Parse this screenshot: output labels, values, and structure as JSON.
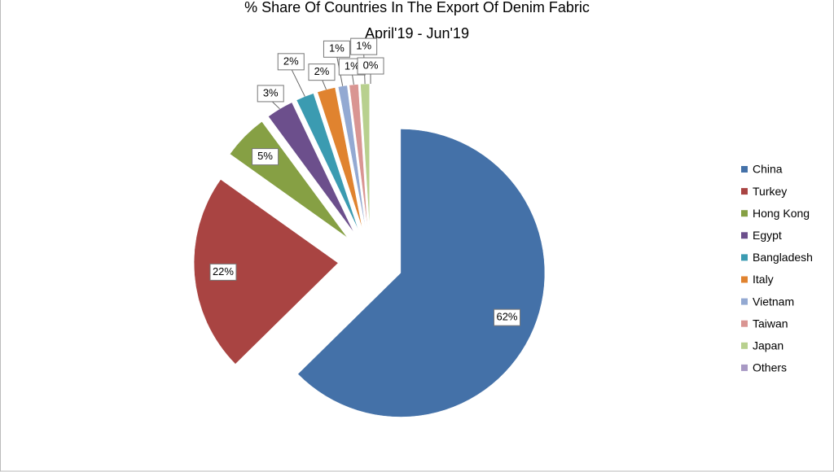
{
  "chart_data": {
    "type": "pie",
    "title": "% Share Of Countries In The Export Of Denim Fabric",
    "subtitle": "April'19 - Jun'19",
    "categories": [
      "China",
      "Turkey",
      "Hong Kong",
      "Egypt",
      "Bangladesh",
      "Italy",
      "Vietnam",
      "Taiwan",
      "Japan",
      "Others"
    ],
    "values": [
      62,
      22,
      5,
      3,
      2,
      2,
      1,
      1,
      1,
      0
    ],
    "value_labels": [
      "62%",
      "22%",
      "5%",
      "3%",
      "2%",
      "2%",
      "1%",
      "1%",
      "1%",
      "0%"
    ],
    "colors": [
      "#4471a8",
      "#a94442",
      "#86a044",
      "#6c4f8c",
      "#3b9bb1",
      "#e0832f",
      "#93a9d2",
      "#d99592",
      "#b8d08e",
      "#a899c4"
    ],
    "legend": "right"
  }
}
